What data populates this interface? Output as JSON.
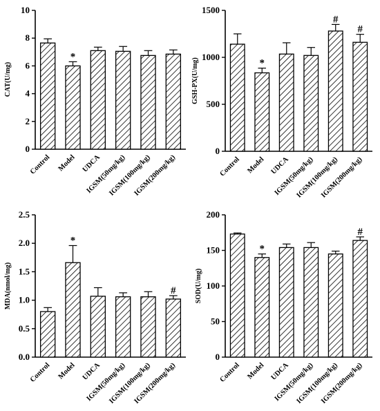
{
  "chart_data": [
    {
      "type": "bar",
      "ylabel": "CAT(U/mg)",
      "categories": [
        "Control",
        "Model",
        "UDCA",
        "IGSM(50mg/kg)",
        "IGSM(100mg/kg)",
        "IGSM(200mg/kg)"
      ],
      "values": [
        7.65,
        6.0,
        7.1,
        7.05,
        6.75,
        6.85
      ],
      "errors": [
        0.3,
        0.3,
        0.25,
        0.35,
        0.35,
        0.3
      ],
      "markers": [
        "",
        "*",
        "",
        "",
        "",
        ""
      ],
      "ylim": [
        0,
        10
      ],
      "yticks": [
        0,
        2,
        4,
        6,
        8,
        10
      ],
      "ytick_labels": [
        "0",
        "2",
        "4",
        "6",
        "8",
        "10"
      ]
    },
    {
      "type": "bar",
      "ylabel": "GSH-PX(U/mg)",
      "categories": [
        "Control",
        "Model",
        "UDCA",
        "IGSM(50mg/kg)",
        "IGSM(100mg/kg)",
        "IGSM(200mg/kg)"
      ],
      "values": [
        1140,
        835,
        1035,
        1020,
        1280,
        1160
      ],
      "errors": [
        110,
        50,
        120,
        85,
        70,
        85
      ],
      "markers": [
        "",
        "*",
        "",
        "",
        "#",
        "#"
      ],
      "ylim": [
        0,
        1500
      ],
      "yticks": [
        0,
        500,
        1000,
        1500
      ],
      "ytick_labels": [
        "0",
        "500",
        "1000",
        "1500"
      ]
    },
    {
      "type": "bar",
      "ylabel": "MDA(nmol/mg)",
      "categories": [
        "Control",
        "Model",
        "UDCA",
        "IGSM(50mg/kg)",
        "IGSM(100mg/kg)",
        "IGSM(200mg/kg)"
      ],
      "values": [
        0.8,
        1.66,
        1.07,
        1.06,
        1.06,
        1.02
      ],
      "errors": [
        0.07,
        0.3,
        0.15,
        0.07,
        0.09,
        0.06
      ],
      "markers": [
        "",
        "*",
        "",
        "",
        "",
        "#"
      ],
      "ylim": [
        0,
        2.5
      ],
      "yticks": [
        0,
        0.5,
        1.0,
        1.5,
        2.0,
        2.5
      ],
      "ytick_labels": [
        "0.0",
        "0.5",
        "1.0",
        "1.5",
        "2.0",
        "2.5"
      ]
    },
    {
      "type": "bar",
      "ylabel": "SOD(U/mg)",
      "categories": [
        "Control",
        "Model",
        "UDCA",
        "IGSM(50mg/kg)",
        "IGSM(100mg/kg)",
        "IGSM(200mg/kg)"
      ],
      "values": [
        173,
        140,
        154,
        154,
        145,
        164
      ],
      "errors": [
        1.5,
        5,
        5,
        7,
        4,
        5
      ],
      "markers": [
        "",
        "*",
        "",
        "",
        "",
        "#"
      ],
      "ylim": [
        0,
        200
      ],
      "yticks": [
        0,
        50,
        100,
        150,
        200
      ],
      "ytick_labels": [
        "0",
        "50",
        "100",
        "150",
        "200"
      ]
    }
  ]
}
